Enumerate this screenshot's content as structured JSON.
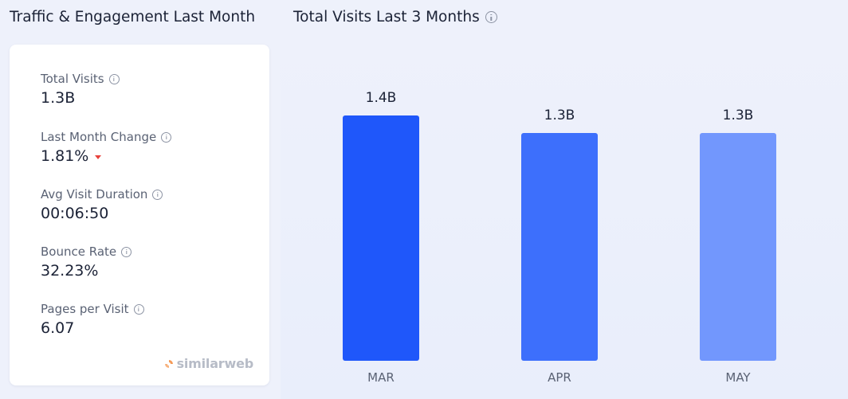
{
  "left_panel": {
    "title": "Traffic & Engagement Last Month",
    "metrics": [
      {
        "label": "Total Visits",
        "value": "1.3B"
      },
      {
        "label": "Last Month Change",
        "value": "1.81%",
        "trend": "down",
        "trend_color": "#e8423c"
      },
      {
        "label": "Avg Visit Duration",
        "value": "00:06:50"
      },
      {
        "label": "Bounce Rate",
        "value": "32.23%"
      },
      {
        "label": "Pages per Visit",
        "value": "6.07"
      }
    ],
    "brand": "similarweb",
    "brand_icon": "similarweb-logo-icon"
  },
  "right_panel": {
    "title": "Total Visits Last 3 Months",
    "info_icon": "info-icon"
  },
  "chart_data": {
    "type": "bar",
    "categories": [
      "MAR",
      "APR",
      "MAY"
    ],
    "values": [
      1.4,
      1.3,
      1.3
    ],
    "data_labels": [
      "1.4B",
      "1.3B",
      "1.3B"
    ],
    "units": "B",
    "bar_colors": [
      "#1f57fa",
      "#3d6ffc",
      "#7297fd"
    ],
    "ylim": [
      0,
      1.4
    ],
    "grid": false,
    "title": "",
    "xlabel": "",
    "ylabel": ""
  }
}
